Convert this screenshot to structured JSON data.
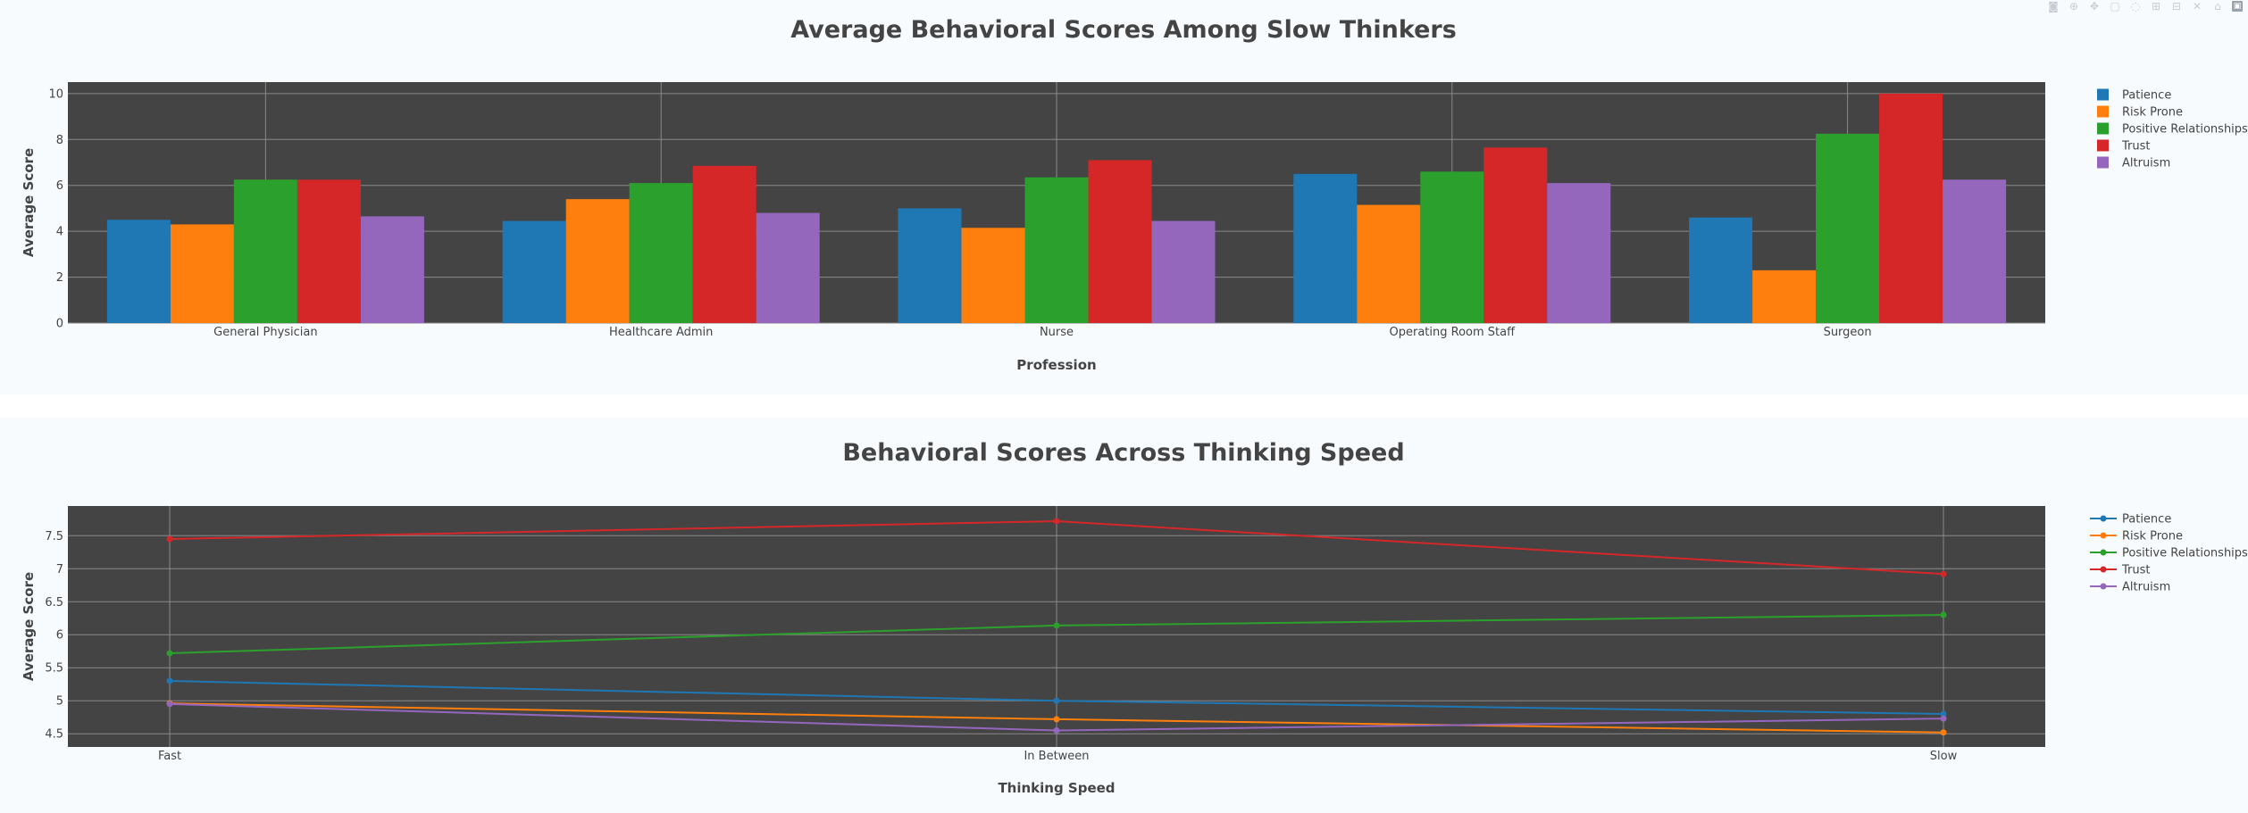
{
  "toolbar": {
    "buttons": [
      "camera-icon",
      "zoom-icon",
      "pan-icon",
      "box-select-icon",
      "lasso-icon",
      "zoom-in-icon",
      "zoom-out-icon",
      "autoscale-icon",
      "reset-axes-icon",
      "plotly-logo-icon"
    ]
  },
  "colors": {
    "plot_bg": "#444444",
    "paper_bg": "#f7fbfe",
    "grid": "#8a8a8a",
    "series": [
      "#1f77b4",
      "#ff7f0e",
      "#2ca02c",
      "#d62728",
      "#9467bd"
    ]
  },
  "chart_data": [
    {
      "type": "bar",
      "title": "Average Behavioral Scores Among Slow Thinkers",
      "xlabel": "Profession",
      "ylabel": "Average Score",
      "categories": [
        "General Physician",
        "Healthcare Admin",
        "Nurse",
        "Operating Room Staff",
        "Surgeon"
      ],
      "ylim": [
        0,
        10.5
      ],
      "yticks": [
        0,
        2,
        4,
        6,
        8,
        10
      ],
      "ytick_labels": [
        "0",
        "2",
        "4",
        "6",
        "8",
        "10"
      ],
      "grid": true,
      "legend_position": "right",
      "series": [
        {
          "name": "Patience",
          "values": [
            4.5,
            4.45,
            5.0,
            6.5,
            4.6
          ]
        },
        {
          "name": "Risk Prone",
          "values": [
            4.3,
            5.4,
            4.15,
            5.15,
            2.3
          ]
        },
        {
          "name": "Positive Relationships",
          "values": [
            6.25,
            6.1,
            6.35,
            6.6,
            8.25
          ]
        },
        {
          "name": "Trust",
          "values": [
            6.25,
            6.85,
            7.1,
            7.65,
            10.0
          ]
        },
        {
          "name": "Altruism",
          "values": [
            4.65,
            4.8,
            4.45,
            6.1,
            6.25
          ]
        }
      ]
    },
    {
      "type": "line",
      "title": "Behavioral Scores Across Thinking Speed",
      "xlabel": "Thinking Speed",
      "ylabel": "Average Score",
      "categories": [
        "Fast",
        "In Between",
        "Slow"
      ],
      "ylim": [
        4.3,
        7.95
      ],
      "yticks": [
        4.5,
        5,
        5.5,
        6,
        6.5,
        7,
        7.5
      ],
      "ytick_labels": [
        "4.5",
        "5",
        "5.5",
        "6",
        "6.5",
        "7",
        "7.5"
      ],
      "grid": true,
      "legend_position": "right",
      "series": [
        {
          "name": "Patience",
          "values": [
            5.3,
            5.0,
            4.8
          ]
        },
        {
          "name": "Risk Prone",
          "values": [
            4.96,
            4.72,
            4.52
          ]
        },
        {
          "name": "Positive Relationships",
          "values": [
            5.72,
            6.14,
            6.3
          ]
        },
        {
          "name": "Trust",
          "values": [
            7.45,
            7.72,
            6.92
          ]
        },
        {
          "name": "Altruism",
          "values": [
            4.95,
            4.55,
            4.73
          ]
        }
      ]
    }
  ]
}
